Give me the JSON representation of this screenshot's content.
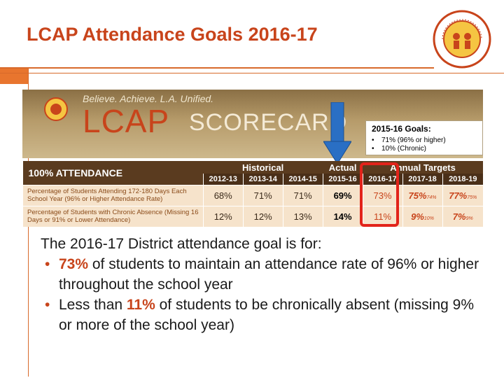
{
  "slide": {
    "title": "LCAP Attendance Goals 2016-17",
    "logo_text": "LOS ANGELES UNIFIED SCHOOL DISTRICT · PUPIL SERVICES"
  },
  "scorecard": {
    "tagline": "Believe. Achieve. L.A. Unified.",
    "lcap": "LCAP",
    "scorecard_word": "SCORECARD",
    "goals_title": "2015-16 Goals:",
    "goals": [
      "71% (96% or higher)",
      "10% (Chronic)"
    ],
    "bullet_char": "•",
    "section_title": "100% ATTENDANCE",
    "groups": {
      "historical": "Historical",
      "actual": "Actual",
      "targets": "Annual Targets"
    },
    "years": [
      "2012-13",
      "2013-14",
      "2014-15",
      "2015-16",
      "2016-17",
      "2017-18",
      "2018-19"
    ],
    "rows": [
      {
        "label": "Percentage of Students Attending 172-180 Days Each School Year (96% or Higher Attendance Rate)",
        "historical": [
          "68%",
          "71%",
          "71%"
        ],
        "actual": "69%",
        "t2016": "73%",
        "t2017": "75%",
        "t2017_small": "74%",
        "t2018": "77%",
        "t2018_small": "75%"
      },
      {
        "label": "Percentage of Students with Chronic Absence (Missing 16 Days or 91% or Lower Attendance)",
        "historical": [
          "12%",
          "12%",
          "13%"
        ],
        "actual": "14%",
        "t2016": "11%",
        "t2017": "9%",
        "t2017_small": "10%",
        "t2018": "7%",
        "t2018_small": "9%"
      }
    ]
  },
  "body": {
    "intro": "The 2016-17 District attendance goal is for:",
    "bullet_char": "•",
    "b1_value": "73%",
    "b1_text": " of students to maintain an attendance rate of 96% or higher throughout the school year",
    "b2_pre": "Less than ",
    "b2_value": "11%",
    "b2_text": " of students to be chronically absent (missing 9% or more of the school year)"
  },
  "colors": {
    "accent": "#c8441b",
    "highlight_box": "#e2231a",
    "arrow": "#2a6fc4",
    "table_header": "#5a3b1f",
    "table_row": "#f6e3cb"
  }
}
